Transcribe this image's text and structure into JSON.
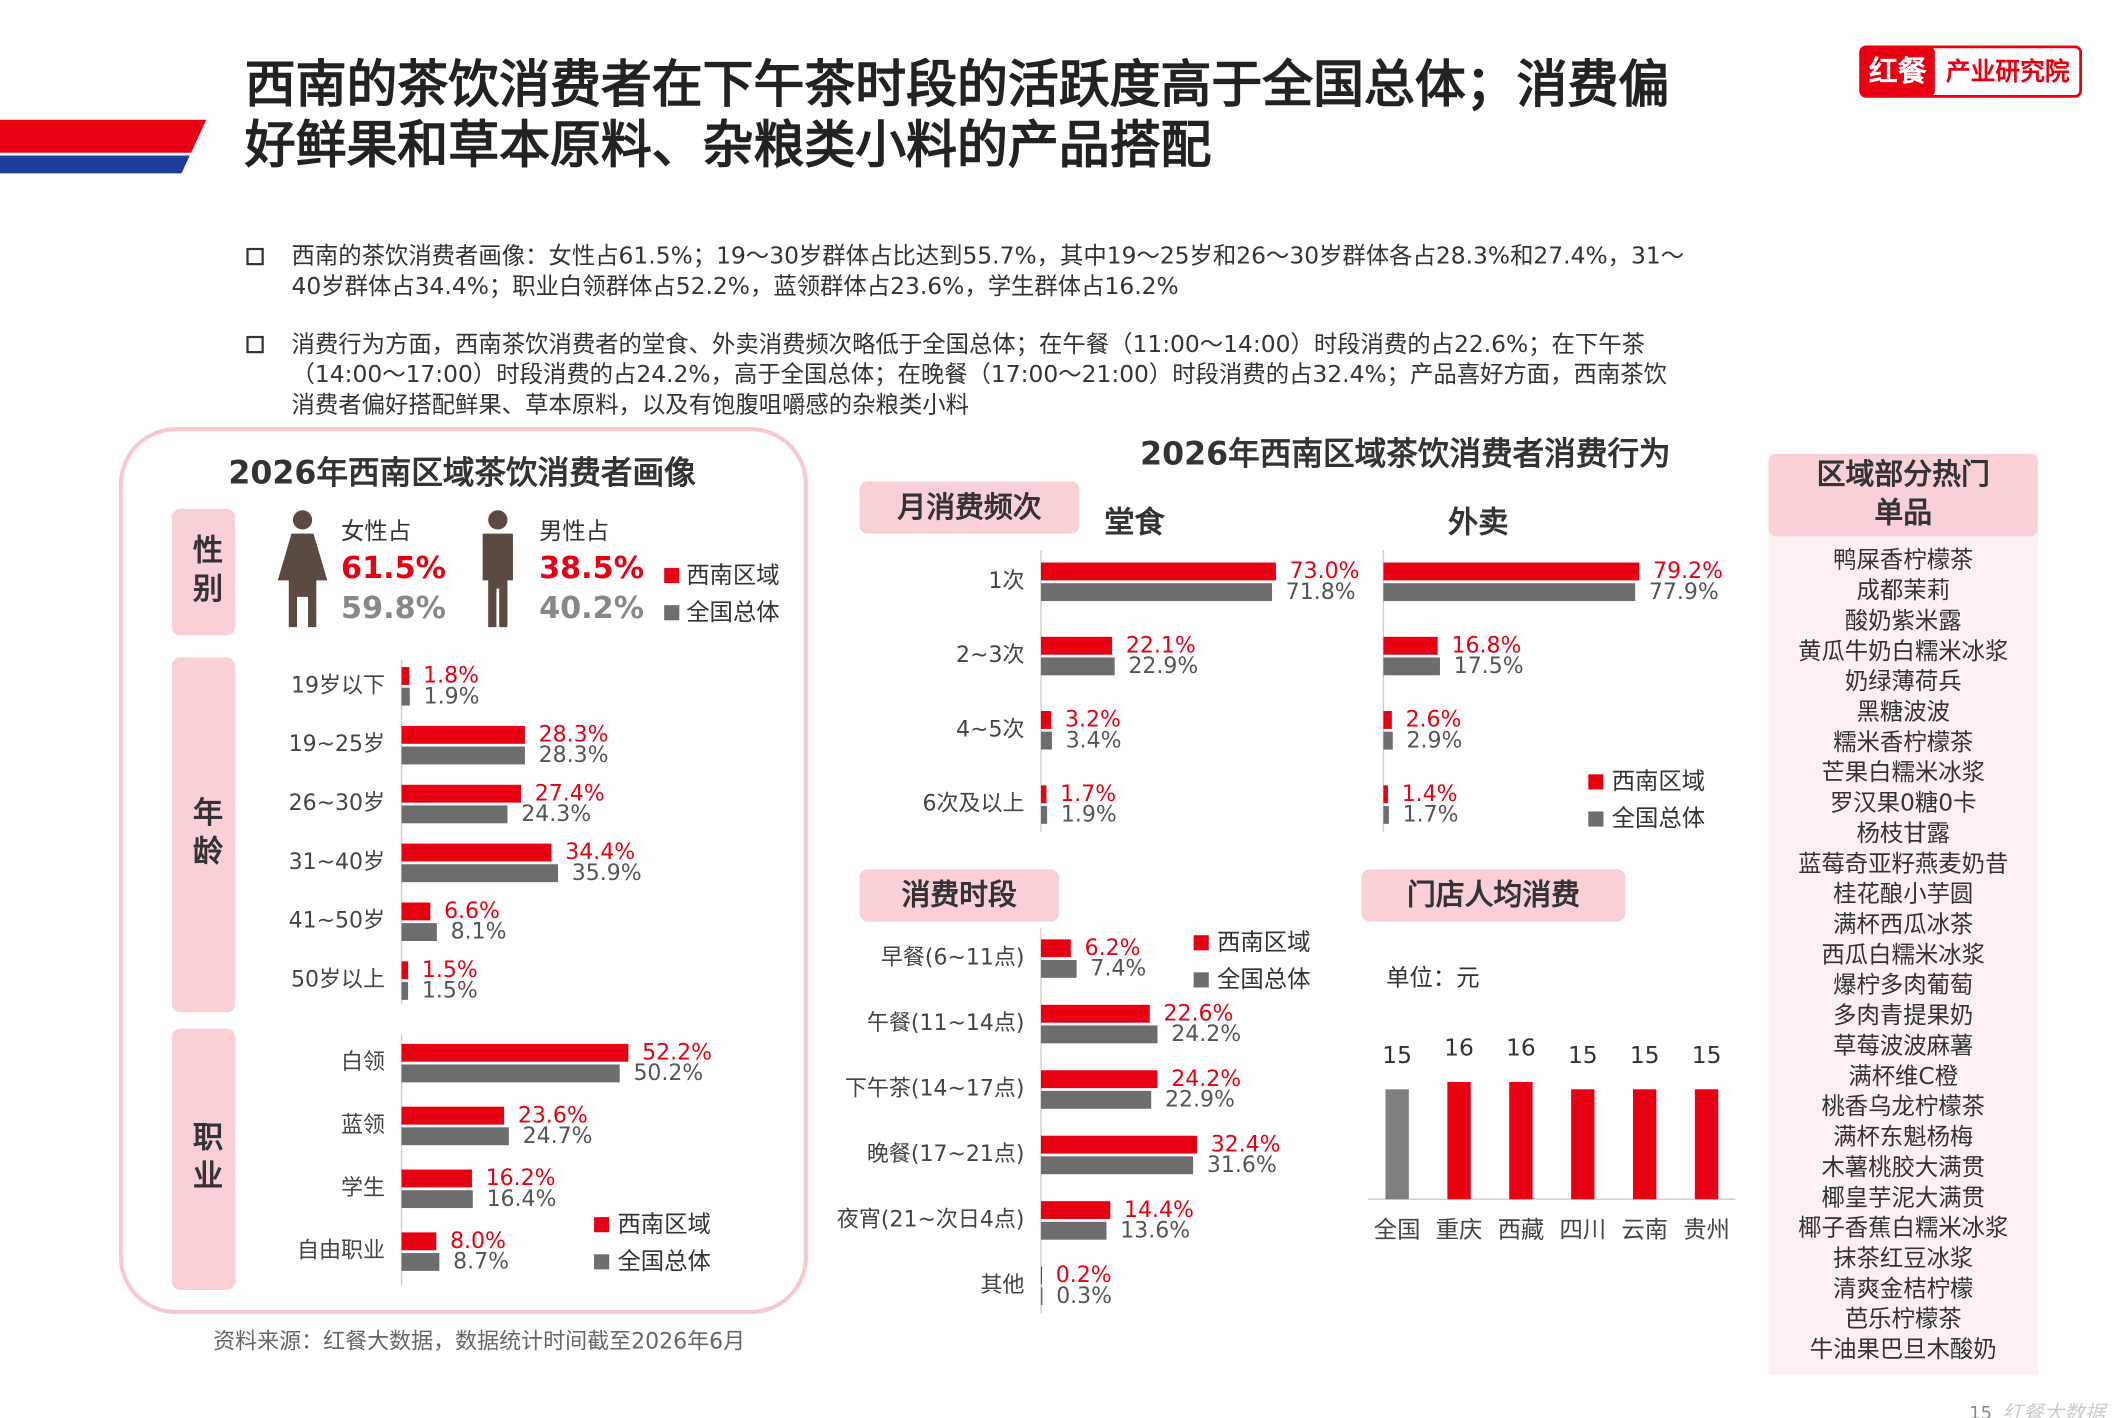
{
  "header": {
    "title_lines": [
      "西南的茶饮消费者在下午茶时段的活跃度高于全国总体；消费偏",
      "好鲜果和草本原料、杂粮类小料的产品搭配"
    ],
    "logo_brand": "红餐",
    "logo_text": "产业研究院"
  },
  "bullets": [
    [
      "西南的茶饮消费者画像：女性占61.5%；19～30岁群体占比达到55.7%，其中19～25岁和26～30岁群体各占28.3%和27.4%，31～",
      "40岁群体占34.4%；职业白领群体占52.2%，蓝领群体占23.6%，学生群体占16.2%"
    ],
    [
      "消费行为方面，西南茶饮消费者的堂食、外卖消费频次略低于全国总体；在午餐（11:00～14:00）时段消费的占22.6%；在下午茶",
      "（14:00～17:00）时段消费的占24.2%，高于全国总体；在晚餐（17:00～21:00）时段消费的占32.4%；产品喜好方面，西南茶饮",
      "消费者偏好搭配鲜果、草本原料，以及有饱腹咀嚼感的杂粮类小料"
    ]
  ],
  "portrait": {
    "title": "2026年西南区域茶饮消费者画像",
    "gender": {
      "label": "性别",
      "female": {
        "label": "女性占",
        "region": "61.5%",
        "national": "59.8%"
      },
      "male": {
        "label": "男性占",
        "region": "38.5%",
        "national": "40.2%"
      },
      "legend": [
        "西南区域",
        "全国总体"
      ]
    }
  },
  "behavior": {
    "title": "2026年西南区域茶饮消费者消费行为",
    "frequency_label": "月消费频次"
  },
  "chart_data": [
    {
      "type": "hbar",
      "label": "年龄",
      "categories": [
        "19岁以下",
        "19~25岁",
        "26~30岁",
        "31~40岁",
        "41~50岁",
        "50岁以上"
      ],
      "series": [
        {
          "color": "#e60012",
          "values": [
            1.8,
            28.3,
            27.4,
            34.4,
            6.6,
            1.5
          ],
          "value_labels": [
            "1.8%",
            "28.3%",
            "27.4%",
            "34.4%",
            "6.6%",
            "1.5%"
          ]
        },
        {
          "color": "#6d6d6d",
          "values": [
            1.9,
            28.3,
            24.3,
            35.9,
            8.1,
            1.5
          ],
          "value_labels": [
            "1.9%",
            "28.3%",
            "24.3%",
            "35.9%",
            "8.1%",
            "1.5%"
          ]
        }
      ]
    },
    {
      "type": "hbar",
      "label": "职业",
      "categories": [
        "白领",
        "蓝领",
        "学生",
        "自由职业"
      ],
      "series": [
        {
          "name": "西南区域",
          "color": "#e60012",
          "values": [
            52.2,
            23.6,
            16.2,
            8.0
          ],
          "value_labels": [
            "52.2%",
            "23.6%",
            "16.2%",
            "8.0%"
          ]
        },
        {
          "name": "全国总体",
          "color": "#6d6d6d",
          "values": [
            50.2,
            24.7,
            16.4,
            8.7
          ],
          "value_labels": [
            "50.2%",
            "24.7%",
            "16.4%",
            "8.7%"
          ]
        }
      ]
    },
    {
      "type": "hbar",
      "title": "堂食",
      "categories": [
        "1次",
        "2~3次",
        "4~5次",
        "6次及以上"
      ],
      "series": [
        {
          "color": "#e60012",
          "values": [
            73.0,
            22.1,
            3.2,
            1.7
          ],
          "value_labels": [
            "73.0%",
            "22.1%",
            "3.2%",
            "1.7%"
          ]
        },
        {
          "color": "#6d6d6d",
          "values": [
            71.8,
            22.9,
            3.4,
            1.9
          ],
          "value_labels": [
            "71.8%",
            "22.9%",
            "3.4%",
            "1.9%"
          ]
        }
      ]
    },
    {
      "type": "hbar",
      "title": "外卖",
      "series": [
        {
          "name": "西南区域",
          "color": "#e60012",
          "values": [
            79.2,
            16.8,
            2.6,
            1.4
          ],
          "value_labels": [
            "79.2%",
            "16.8%",
            "2.6%",
            "1.4%"
          ]
        },
        {
          "name": "全国总体",
          "color": "#6d6d6d",
          "values": [
            77.9,
            17.5,
            2.9,
            1.7
          ],
          "value_labels": [
            "77.9%",
            "17.5%",
            "2.9%",
            "1.7%"
          ]
        }
      ]
    },
    {
      "type": "hbar",
      "title": "消费时段",
      "categories": [
        "早餐(6~11点)",
        "午餐(11~14点)",
        "下午茶(14~17点)",
        "晚餐(17~21点)",
        "夜宵(21~次日4点)",
        "其他"
      ],
      "series": [
        {
          "name": "西南区域",
          "color": "#e60012",
          "values": [
            6.2,
            22.6,
            24.2,
            32.4,
            14.4,
            0.2
          ],
          "value_labels": [
            "6.2%",
            "22.6%",
            "24.2%",
            "32.4%",
            "14.4%",
            "0.2%"
          ]
        },
        {
          "name": "全国总体",
          "color": "#6d6d6d",
          "values": [
            7.4,
            24.2,
            22.9,
            31.6,
            13.6,
            0.3
          ],
          "value_labels": [
            "7.4%",
            "24.2%",
            "22.9%",
            "31.6%",
            "13.6%",
            "0.3%"
          ]
        }
      ]
    },
    {
      "type": "bar",
      "title": "门店人均消费",
      "unit": "单位：元",
      "categories": [
        "全国",
        "重庆",
        "西藏",
        "四川",
        "云南",
        "贵州"
      ],
      "values": [
        15,
        16,
        16,
        15,
        15,
        15
      ],
      "colors": [
        "#7f7f7f",
        "#e60012",
        "#e60012",
        "#e60012",
        "#e60012",
        "#e60012"
      ]
    }
  ],
  "hot_items": {
    "title_lines": [
      "区域部分热门",
      "单品"
    ],
    "items": [
      "鸭屎香柠檬茶",
      "成都茉莉",
      "酸奶紫米露",
      "黄瓜牛奶白糯米冰浆",
      "奶绿薄荷兵",
      "黑糖波波",
      "糯米香柠檬茶",
      "芒果白糯米冰浆",
      "罗汉果0糖0卡",
      "杨枝甘露",
      "蓝莓奇亚籽燕麦奶昔",
      "桂花酿小芋圆",
      "满杯西瓜冰茶",
      "西瓜白糯米冰浆",
      "爆柠多肉葡萄",
      "多肉青提果奶",
      "草莓波波麻薯",
      "满杯维C橙",
      "桃香乌龙柠檬茶",
      "满杯东魁杨梅",
      "木薯桃胶大满贯",
      "椰皇芋泥大满贯",
      "椰子香蕉白糯米冰浆",
      "抹茶红豆冰浆",
      "清爽金桔柠檬",
      "芭乐柠檬茶",
      "牛油果巴旦木酸奶"
    ]
  },
  "footer": {
    "source": "资料来源：红餐大数据，数据统计时间截至2026年6月",
    "page": "15",
    "brand": "红餐大数据"
  }
}
